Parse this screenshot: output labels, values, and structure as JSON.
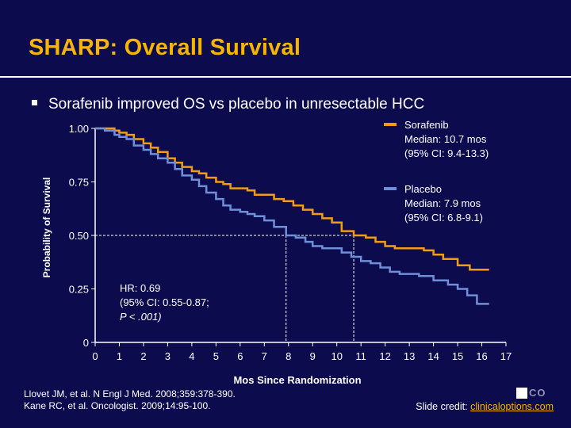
{
  "slide": {
    "title": "SHARP: Overall Survival",
    "bullet": "Sorafenib improved OS vs placebo in unresectable HCC",
    "refs": [
      "Llovet JM, et al. N Engl J Med. 2008;359:378-390.",
      "Kane RC, et al. Oncologist. 2009;14:95-100."
    ],
    "credit_prefix": "Slide credit: ",
    "credit_link": "clinicaloptions.com",
    "logo_text": "CO"
  },
  "colors": {
    "background": "#0b0b4e",
    "title": "#f7b500",
    "sorafenib": "#f39c12",
    "placebo": "#6f8fd8",
    "axis": "#ffffff"
  },
  "chart_data": {
    "type": "line",
    "xlabel": "Mos Since Randomization",
    "ylabel": "Probability of Survival",
    "xlim": [
      0,
      17
    ],
    "ylim": [
      0,
      1
    ],
    "x_ticks": [
      0,
      1,
      2,
      3,
      4,
      5,
      6,
      7,
      8,
      9,
      10,
      11,
      12,
      13,
      14,
      15,
      16,
      17
    ],
    "y_ticks": [
      0,
      0.25,
      0.5,
      0.75,
      1.0
    ],
    "y_tick_labels": [
      "0",
      "0.25",
      "0.50",
      "0.75",
      "1.00"
    ],
    "annotation": {
      "hr": "HR: 0.69",
      "ci": "(95% CI: 0.55-0.87;",
      "p": "P < .001)"
    },
    "median_markers": [
      {
        "series": "Placebo",
        "x": 7.9,
        "y": 0.5
      },
      {
        "series": "Sorafenib",
        "x": 10.7,
        "y": 0.5
      }
    ],
    "series": [
      {
        "name": "Sorafenib",
        "legend": [
          "Sorafenib",
          "Median: 10.7 mos",
          "(95% CI: 9.4-13.3)"
        ],
        "color": "#f39c12",
        "x": [
          0,
          0.4,
          0.8,
          1.0,
          1.3,
          1.6,
          2.0,
          2.3,
          2.6,
          3.0,
          3.3,
          3.6,
          4.0,
          4.3,
          4.6,
          5.0,
          5.3,
          5.6,
          6.0,
          6.3,
          6.6,
          7.0,
          7.4,
          7.8,
          8.2,
          8.6,
          9.0,
          9.4,
          9.8,
          10.2,
          10.7,
          11.2,
          11.6,
          12.0,
          12.4,
          13.0,
          13.6,
          14.0,
          14.4,
          15.0,
          15.5,
          16.0,
          16.3
        ],
        "y": [
          1.0,
          1.0,
          0.99,
          0.98,
          0.97,
          0.95,
          0.93,
          0.91,
          0.89,
          0.86,
          0.84,
          0.82,
          0.8,
          0.79,
          0.77,
          0.75,
          0.74,
          0.72,
          0.72,
          0.71,
          0.69,
          0.69,
          0.67,
          0.66,
          0.64,
          0.62,
          0.6,
          0.58,
          0.56,
          0.52,
          0.5,
          0.49,
          0.47,
          0.45,
          0.44,
          0.44,
          0.43,
          0.41,
          0.39,
          0.36,
          0.34,
          0.34,
          0.34
        ]
      },
      {
        "name": "Placebo",
        "legend": [
          "Placebo",
          "Median: 7.9 mos",
          "(95% CI: 6.8-9.1)"
        ],
        "color": "#6f8fd8",
        "x": [
          0,
          0.4,
          0.8,
          1.0,
          1.3,
          1.6,
          2.0,
          2.3,
          2.6,
          3.0,
          3.3,
          3.6,
          4.0,
          4.3,
          4.6,
          5.0,
          5.3,
          5.6,
          6.0,
          6.3,
          6.6,
          7.0,
          7.4,
          7.9,
          8.3,
          8.7,
          9.0,
          9.4,
          9.8,
          10.2,
          10.6,
          11.0,
          11.4,
          11.8,
          12.2,
          12.6,
          13.0,
          13.4,
          14.0,
          14.6,
          15.0,
          15.4,
          15.8,
          16.3
        ],
        "y": [
          1.0,
          0.99,
          0.97,
          0.96,
          0.95,
          0.92,
          0.9,
          0.88,
          0.86,
          0.84,
          0.81,
          0.78,
          0.76,
          0.73,
          0.7,
          0.67,
          0.64,
          0.62,
          0.61,
          0.6,
          0.59,
          0.57,
          0.54,
          0.5,
          0.49,
          0.47,
          0.45,
          0.44,
          0.44,
          0.42,
          0.4,
          0.38,
          0.37,
          0.35,
          0.33,
          0.32,
          0.32,
          0.31,
          0.29,
          0.27,
          0.25,
          0.22,
          0.18,
          0.18
        ]
      }
    ]
  }
}
